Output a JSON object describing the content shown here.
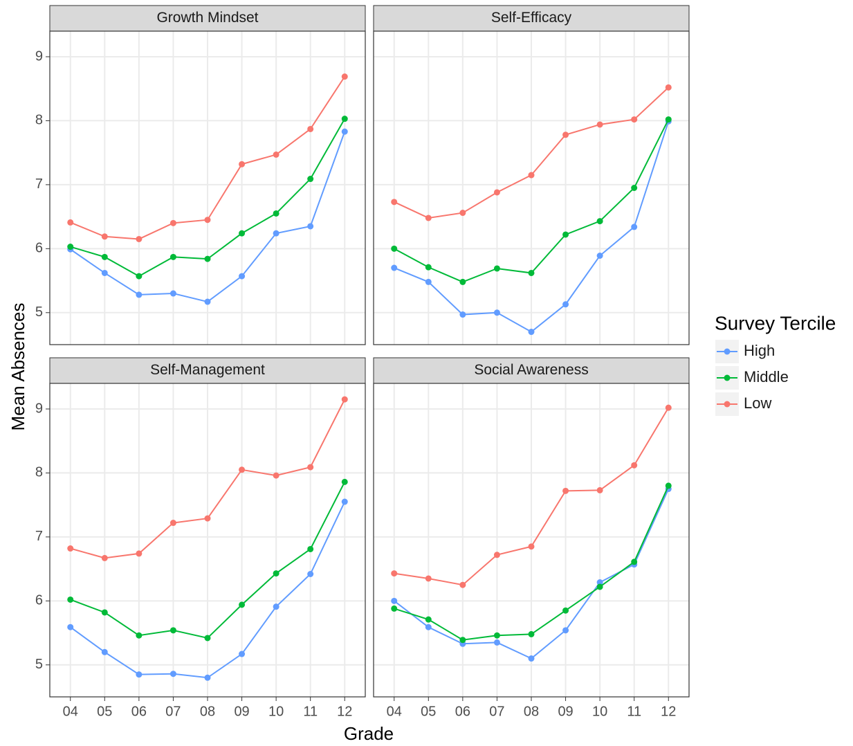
{
  "axis_labels": {
    "x": "Grade",
    "y": "Mean Absences"
  },
  "legend": {
    "title": "Survey Tercile",
    "position": "right"
  },
  "chart_data": [
    {
      "type": "line",
      "title": "Growth Mindset",
      "categories": [
        "04",
        "05",
        "06",
        "07",
        "08",
        "09",
        "10",
        "11",
        "12"
      ],
      "ylim": [
        4.5,
        9.4
      ],
      "yticks": [
        5,
        6,
        7,
        8,
        9
      ],
      "grid": true,
      "series": [
        {
          "name": "High",
          "color": "#619CFF",
          "values": [
            5.99,
            5.62,
            5.28,
            5.3,
            5.17,
            5.57,
            6.24,
            6.35,
            7.83
          ]
        },
        {
          "name": "Middle",
          "color": "#00BA38",
          "values": [
            6.03,
            5.87,
            5.57,
            5.87,
            5.84,
            6.24,
            6.55,
            7.09,
            8.03
          ]
        },
        {
          "name": "Low",
          "color": "#F8766D",
          "values": [
            6.41,
            6.19,
            6.15,
            6.4,
            6.45,
            7.32,
            7.47,
            7.87,
            8.69
          ]
        }
      ]
    },
    {
      "type": "line",
      "title": "Self-Efficacy",
      "categories": [
        "04",
        "05",
        "06",
        "07",
        "08",
        "09",
        "10",
        "11",
        "12"
      ],
      "ylim": [
        4.5,
        9.4
      ],
      "yticks": [
        5,
        6,
        7,
        8,
        9
      ],
      "grid": true,
      "series": [
        {
          "name": "High",
          "color": "#619CFF",
          "values": [
            5.7,
            5.48,
            4.97,
            5.0,
            4.7,
            5.13,
            5.89,
            6.34,
            7.99
          ]
        },
        {
          "name": "Middle",
          "color": "#00BA38",
          "values": [
            6.0,
            5.71,
            5.48,
            5.69,
            5.62,
            6.22,
            6.43,
            6.95,
            8.02
          ]
        },
        {
          "name": "Low",
          "color": "#F8766D",
          "values": [
            6.73,
            6.48,
            6.56,
            6.88,
            7.15,
            7.78,
            7.94,
            8.02,
            8.52
          ]
        }
      ]
    },
    {
      "type": "line",
      "title": "Self-Management",
      "categories": [
        "04",
        "05",
        "06",
        "07",
        "08",
        "09",
        "10",
        "11",
        "12"
      ],
      "ylim": [
        4.5,
        9.4
      ],
      "yticks": [
        5,
        6,
        7,
        8,
        9
      ],
      "grid": true,
      "series": [
        {
          "name": "High",
          "color": "#619CFF",
          "values": [
            5.59,
            5.2,
            4.85,
            4.86,
            4.8,
            5.17,
            5.91,
            6.42,
            7.55
          ]
        },
        {
          "name": "Middle",
          "color": "#00BA38",
          "values": [
            6.02,
            5.82,
            5.46,
            5.54,
            5.42,
            5.94,
            6.43,
            6.81,
            7.86
          ]
        },
        {
          "name": "Low",
          "color": "#F8766D",
          "values": [
            6.82,
            6.67,
            6.74,
            7.22,
            7.29,
            8.05,
            7.96,
            8.09,
            9.15
          ]
        }
      ]
    },
    {
      "type": "line",
      "title": "Social Awareness",
      "categories": [
        "04",
        "05",
        "06",
        "07",
        "08",
        "09",
        "10",
        "11",
        "12"
      ],
      "ylim": [
        4.5,
        9.4
      ],
      "yticks": [
        5,
        6,
        7,
        8,
        9
      ],
      "grid": true,
      "series": [
        {
          "name": "High",
          "color": "#619CFF",
          "values": [
            6.0,
            5.59,
            5.33,
            5.35,
            5.1,
            5.54,
            6.29,
            6.57,
            7.75
          ]
        },
        {
          "name": "Middle",
          "color": "#00BA38",
          "values": [
            5.88,
            5.71,
            5.39,
            5.46,
            5.48,
            5.85,
            6.22,
            6.61,
            7.8
          ]
        },
        {
          "name": "Low",
          "color": "#F8766D",
          "values": [
            6.43,
            6.35,
            6.25,
            6.72,
            6.85,
            7.72,
            7.73,
            8.12,
            9.02
          ]
        }
      ]
    }
  ]
}
